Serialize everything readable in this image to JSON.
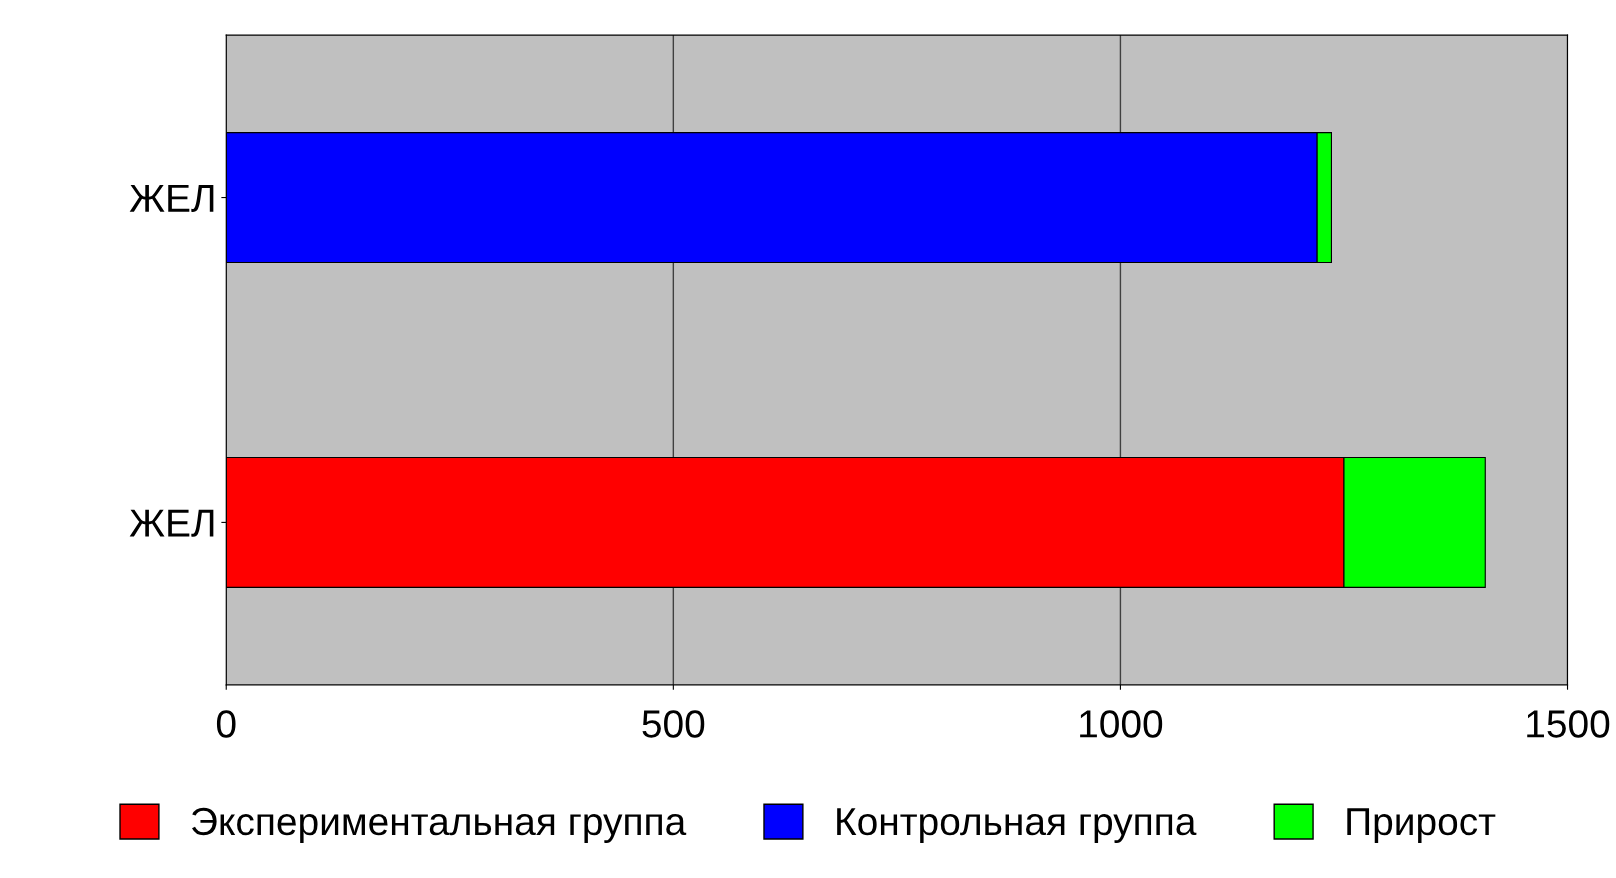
{
  "chart_data": {
    "type": "bar",
    "orientation": "horizontal",
    "stacked": true,
    "categories": [
      "ЖЕЛ",
      "ЖЕЛ"
    ],
    "series": [
      {
        "name": "Экспериментальная группа",
        "color": "#ff0000",
        "values": [
          null,
          1250
        ]
      },
      {
        "name": "Контрольная группа",
        "color": "#0000ff",
        "values": [
          1220,
          null
        ]
      },
      {
        "name": "Прирост",
        "color": "#00ff00",
        "values": [
          16,
          158
        ]
      }
    ],
    "xlim": [
      0,
      1500
    ],
    "xticks": [
      0,
      500,
      1000,
      1500
    ],
    "grid": "x",
    "legend": "bottom"
  }
}
